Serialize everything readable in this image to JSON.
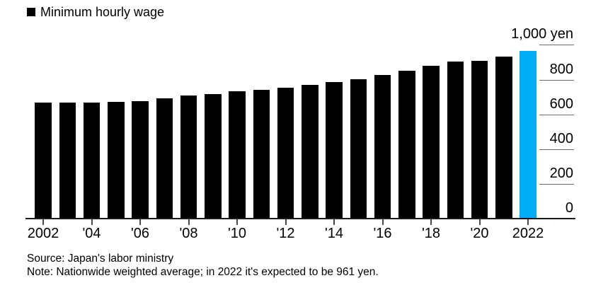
{
  "legend": {
    "label": "Minimum hourly wage",
    "swatch_color": "#000000"
  },
  "chart_data": {
    "type": "bar",
    "title": "Minimum hourly wage",
    "unit": "yen",
    "categories": [
      2002,
      2003,
      2004,
      2005,
      2006,
      2007,
      2008,
      2009,
      2010,
      2011,
      2012,
      2013,
      2014,
      2015,
      2016,
      2017,
      2018,
      2019,
      2020,
      2021,
      2022
    ],
    "values": [
      663,
      664,
      665,
      668,
      673,
      687,
      703,
      713,
      730,
      737,
      749,
      764,
      780,
      798,
      823,
      848,
      874,
      901,
      902,
      930,
      961
    ],
    "bar_color": "#000000",
    "highlight_year": 2022,
    "highlight_color": "#00aef5",
    "ylim": [
      0,
      1000
    ],
    "yticks": [
      {
        "value": 1000,
        "label": "1,000 yen"
      },
      {
        "value": 800,
        "label": "800"
      },
      {
        "value": 600,
        "label": "600"
      },
      {
        "value": 400,
        "label": "400"
      },
      {
        "value": 200,
        "label": "200"
      },
      {
        "value": 0,
        "label": "0"
      }
    ],
    "xticks": [
      {
        "year": 2002,
        "label": "2002"
      },
      {
        "year": 2004,
        "label": "'04"
      },
      {
        "year": 2006,
        "label": "'06"
      },
      {
        "year": 2008,
        "label": "'08"
      },
      {
        "year": 2010,
        "label": "'10"
      },
      {
        "year": 2012,
        "label": "'12"
      },
      {
        "year": 2014,
        "label": "'14"
      },
      {
        "year": 2016,
        "label": "'16"
      },
      {
        "year": 2018,
        "label": "'18"
      },
      {
        "year": 2020,
        "label": "'20"
      },
      {
        "year": 2022,
        "label": "2022"
      }
    ],
    "legend_position": "top-left",
    "grid": "right-side tick segments, no full gridlines"
  },
  "footer": {
    "source": "Source: Japan's labor ministry",
    "note": "Note: Nationwide weighted average; in 2022 it's expected to be 961 yen."
  }
}
